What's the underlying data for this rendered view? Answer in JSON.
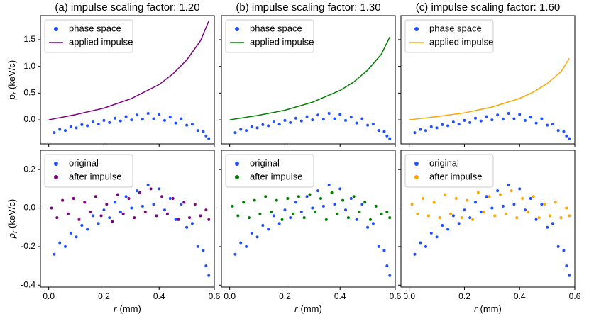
{
  "chart_data": [
    {
      "type": "scatter",
      "title": "(a) impulse scaling factor: 1.20",
      "ylabel": {
        "symbol": "p",
        "subscript": "r",
        "unit": "(keV/c)"
      },
      "xlim": [
        -0.03,
        0.6
      ],
      "ylim": [
        -0.45,
        1.95
      ],
      "xticks": [
        {
          "value": 0,
          "label": "0.0"
        },
        0.2,
        0.4,
        0.6
      ],
      "yticks": [
        {
          "value": 0,
          "label": "0.0"
        },
        0.5,
        {
          "value": 1,
          "label": "1.0"
        },
        1.5
      ],
      "legend": "upper left",
      "series": [
        {
          "name": "phase space",
          "color": "#1f4fff",
          "x": [
            0.02,
            0.04,
            0.06,
            0.08,
            0.1,
            0.12,
            0.14,
            0.16,
            0.18,
            0.2,
            0.22,
            0.24,
            0.26,
            0.28,
            0.3,
            0.32,
            0.34,
            0.36,
            0.38,
            0.4,
            0.42,
            0.44,
            0.46,
            0.48,
            0.5,
            0.52,
            0.54,
            0.56,
            0.57,
            0.58
          ],
          "values": [
            -0.24,
            -0.18,
            -0.2,
            -0.13,
            -0.15,
            -0.09,
            -0.11,
            -0.04,
            -0.08,
            -0.01,
            -0.05,
            0.03,
            -0.02,
            0.06,
            0.0,
            0.09,
            0.01,
            0.12,
            0.02,
            0.1,
            -0.01,
            0.05,
            -0.06,
            0.02,
            -0.1,
            -0.08,
            -0.2,
            -0.22,
            -0.3,
            -0.35
          ]
        },
        {
          "name": "applied impulse",
          "type": "line",
          "color": "#800080",
          "x": [
            0.0,
            0.1,
            0.2,
            0.3,
            0.4,
            0.45,
            0.5,
            0.55,
            0.58
          ],
          "values": [
            0.0,
            0.1,
            0.22,
            0.4,
            0.66,
            0.86,
            1.12,
            1.48,
            1.85
          ]
        }
      ]
    },
    {
      "type": "scatter",
      "title": "(b) impulse scaling factor: 1.30",
      "xlim": [
        -0.03,
        0.6
      ],
      "ylim": [
        -0.45,
        1.95
      ],
      "xticks": [
        {
          "value": 0,
          "label": "0.0"
        },
        0.2,
        0.4,
        0.6
      ],
      "yticks": [
        {
          "value": 0,
          "label": "0.0"
        },
        0.5,
        {
          "value": 1,
          "label": "1.0"
        },
        1.5
      ],
      "legend": "upper left",
      "series": [
        {
          "name": "phase space",
          "color": "#1f4fff",
          "x": [
            0.02,
            0.04,
            0.06,
            0.08,
            0.1,
            0.12,
            0.14,
            0.16,
            0.18,
            0.2,
            0.22,
            0.24,
            0.26,
            0.28,
            0.3,
            0.32,
            0.34,
            0.36,
            0.38,
            0.4,
            0.42,
            0.44,
            0.46,
            0.48,
            0.5,
            0.52,
            0.54,
            0.56,
            0.57,
            0.58
          ],
          "values": [
            -0.24,
            -0.18,
            -0.2,
            -0.13,
            -0.15,
            -0.09,
            -0.11,
            -0.04,
            -0.08,
            -0.01,
            -0.05,
            0.03,
            -0.02,
            0.06,
            0.0,
            0.09,
            0.01,
            0.12,
            0.02,
            0.1,
            -0.01,
            0.05,
            -0.06,
            0.02,
            -0.1,
            -0.08,
            -0.2,
            -0.22,
            -0.3,
            -0.35
          ]
        },
        {
          "name": "applied impulse",
          "type": "line",
          "color": "#008000",
          "x": [
            0.0,
            0.1,
            0.2,
            0.3,
            0.4,
            0.45,
            0.5,
            0.55,
            0.58
          ],
          "values": [
            0.0,
            0.08,
            0.18,
            0.33,
            0.55,
            0.71,
            0.93,
            1.23,
            1.55
          ]
        }
      ]
    },
    {
      "type": "scatter",
      "title": "(c) impulse scaling factor: 1.60",
      "xlim": [
        -0.03,
        0.6
      ],
      "ylim": [
        -0.45,
        1.95
      ],
      "xticks": [
        {
          "value": 0,
          "label": "0.0"
        },
        0.2,
        0.4,
        0.6
      ],
      "yticks": [
        {
          "value": 0,
          "label": "0.0"
        },
        0.5,
        {
          "value": 1,
          "label": "1.0"
        },
        1.5
      ],
      "legend": "upper left",
      "series": [
        {
          "name": "phase space",
          "color": "#1f4fff",
          "x": [
            0.02,
            0.04,
            0.06,
            0.08,
            0.1,
            0.12,
            0.14,
            0.16,
            0.18,
            0.2,
            0.22,
            0.24,
            0.26,
            0.28,
            0.3,
            0.32,
            0.34,
            0.36,
            0.38,
            0.4,
            0.42,
            0.44,
            0.46,
            0.48,
            0.5,
            0.52,
            0.54,
            0.56,
            0.57,
            0.58
          ],
          "values": [
            -0.24,
            -0.18,
            -0.2,
            -0.13,
            -0.15,
            -0.09,
            -0.11,
            -0.04,
            -0.08,
            -0.01,
            -0.05,
            0.03,
            -0.02,
            0.06,
            0.0,
            0.09,
            0.01,
            0.12,
            0.02,
            0.1,
            -0.01,
            0.05,
            -0.06,
            0.02,
            -0.1,
            -0.08,
            -0.2,
            -0.22,
            -0.3,
            -0.35
          ]
        },
        {
          "name": "applied impulse",
          "type": "line",
          "color": "#ffa500",
          "x": [
            0.0,
            0.1,
            0.2,
            0.3,
            0.4,
            0.45,
            0.5,
            0.55,
            0.58
          ],
          "values": [
            0.0,
            0.06,
            0.13,
            0.24,
            0.4,
            0.52,
            0.68,
            0.9,
            1.15
          ]
        }
      ]
    },
    {
      "type": "scatter",
      "xlabel": {
        "symbol": "r",
        "unit": "(mm)"
      },
      "ylabel": {
        "symbol": "p",
        "subscript": "r",
        "unit": "(keV/c)"
      },
      "xlim": [
        -0.03,
        0.6
      ],
      "ylim": [
        -0.41,
        0.3
      ],
      "xticks": [
        {
          "value": 0,
          "label": "0.0"
        },
        0.2,
        0.4,
        0.6
      ],
      "yticks": [
        -0.4,
        -0.2,
        {
          "value": 0,
          "label": "0.0"
        },
        0.2
      ],
      "legend": "upper left",
      "series": [
        {
          "name": "original",
          "color": "#1f4fff",
          "x": [
            0.02,
            0.04,
            0.06,
            0.08,
            0.1,
            0.12,
            0.14,
            0.16,
            0.18,
            0.2,
            0.22,
            0.24,
            0.26,
            0.28,
            0.3,
            0.32,
            0.34,
            0.36,
            0.38,
            0.4,
            0.42,
            0.44,
            0.46,
            0.48,
            0.5,
            0.52,
            0.54,
            0.56,
            0.57,
            0.58
          ],
          "values": [
            -0.24,
            -0.18,
            -0.2,
            -0.13,
            -0.15,
            -0.09,
            -0.11,
            -0.04,
            -0.08,
            -0.01,
            -0.05,
            0.03,
            -0.02,
            0.06,
            0.0,
            0.09,
            0.01,
            0.12,
            0.02,
            0.1,
            -0.01,
            0.05,
            -0.06,
            0.02,
            -0.1,
            -0.08,
            -0.2,
            -0.22,
            -0.3,
            -0.35
          ]
        },
        {
          "name": "after impulse",
          "color": "#800080",
          "x": [
            0.01,
            0.03,
            0.05,
            0.07,
            0.09,
            0.11,
            0.13,
            0.15,
            0.17,
            0.19,
            0.21,
            0.23,
            0.25,
            0.27,
            0.29,
            0.31,
            0.33,
            0.35,
            0.37,
            0.39,
            0.41,
            0.43,
            0.45,
            0.47,
            0.49,
            0.51,
            0.53,
            0.55,
            0.57,
            0.58
          ],
          "values": [
            0.0,
            -0.05,
            0.04,
            -0.03,
            0.05,
            -0.06,
            0.03,
            -0.02,
            0.06,
            -0.04,
            0.02,
            -0.07,
            0.07,
            -0.03,
            0.05,
            -0.05,
            0.08,
            -0.02,
            0.1,
            -0.04,
            0.06,
            -0.03,
            0.05,
            -0.06,
            0.03,
            -0.05,
            0.02,
            -0.04,
            -0.01,
            -0.06
          ]
        }
      ]
    },
    {
      "type": "scatter",
      "xlabel": {
        "symbol": "r",
        "unit": "(mm)"
      },
      "xlim": [
        -0.03,
        0.6
      ],
      "ylim": [
        -0.41,
        0.3
      ],
      "xticks": [
        {
          "value": 0,
          "label": "0.0"
        },
        0.2,
        0.4,
        0.6
      ],
      "yticks": [
        -0.4,
        -0.2,
        {
          "value": 0,
          "label": "0.0"
        },
        0.2
      ],
      "legend": "upper left",
      "series": [
        {
          "name": "original",
          "color": "#1f4fff",
          "x": [
            0.02,
            0.04,
            0.06,
            0.08,
            0.1,
            0.12,
            0.14,
            0.16,
            0.18,
            0.2,
            0.22,
            0.24,
            0.26,
            0.28,
            0.3,
            0.32,
            0.34,
            0.36,
            0.38,
            0.4,
            0.42,
            0.44,
            0.46,
            0.48,
            0.5,
            0.52,
            0.54,
            0.56,
            0.57,
            0.58
          ],
          "values": [
            -0.24,
            -0.18,
            -0.2,
            -0.13,
            -0.15,
            -0.09,
            -0.11,
            -0.04,
            -0.08,
            -0.01,
            -0.05,
            0.03,
            -0.02,
            0.06,
            0.0,
            0.09,
            0.01,
            0.12,
            0.02,
            0.1,
            -0.01,
            0.05,
            -0.06,
            0.02,
            -0.1,
            -0.08,
            -0.2,
            -0.22,
            -0.3,
            -0.35
          ]
        },
        {
          "name": "after impulse",
          "color": "#008000",
          "x": [
            0.01,
            0.03,
            0.05,
            0.07,
            0.09,
            0.11,
            0.13,
            0.15,
            0.17,
            0.19,
            0.21,
            0.23,
            0.25,
            0.27,
            0.29,
            0.31,
            0.33,
            0.35,
            0.37,
            0.39,
            0.41,
            0.43,
            0.45,
            0.47,
            0.49,
            0.51,
            0.53,
            0.55,
            0.57,
            0.58
          ],
          "values": [
            0.01,
            -0.04,
            0.03,
            -0.05,
            0.04,
            -0.03,
            0.06,
            -0.02,
            0.04,
            -0.06,
            0.05,
            -0.03,
            0.06,
            -0.05,
            0.07,
            -0.02,
            0.05,
            -0.06,
            0.08,
            -0.03,
            0.04,
            -0.05,
            0.06,
            -0.02,
            0.03,
            -0.06,
            0.01,
            -0.03,
            -0.02,
            -0.05
          ]
        }
      ]
    },
    {
      "type": "scatter",
      "xlabel": {
        "symbol": "r",
        "unit": "(mm)"
      },
      "xlim": [
        -0.03,
        0.6
      ],
      "ylim": [
        -0.41,
        0.3
      ],
      "xticks": [
        {
          "value": 0,
          "label": "0.0"
        },
        0.2,
        0.4,
        0.6
      ],
      "yticks": [
        -0.4,
        -0.2,
        {
          "value": 0,
          "label": "0.0"
        },
        0.2
      ],
      "legend": "upper left",
      "series": [
        {
          "name": "original",
          "color": "#1f4fff",
          "x": [
            0.02,
            0.04,
            0.06,
            0.08,
            0.1,
            0.12,
            0.14,
            0.16,
            0.18,
            0.2,
            0.22,
            0.24,
            0.26,
            0.28,
            0.3,
            0.32,
            0.34,
            0.36,
            0.38,
            0.4,
            0.42,
            0.44,
            0.46,
            0.48,
            0.5,
            0.52,
            0.54,
            0.56,
            0.57,
            0.58
          ],
          "values": [
            -0.24,
            -0.18,
            -0.2,
            -0.13,
            -0.15,
            -0.09,
            -0.11,
            -0.04,
            -0.08,
            -0.01,
            -0.05,
            0.03,
            -0.02,
            0.06,
            0.0,
            0.09,
            0.01,
            0.12,
            0.02,
            0.1,
            -0.01,
            0.05,
            -0.06,
            0.02,
            -0.1,
            -0.08,
            -0.2,
            -0.22,
            -0.3,
            -0.35
          ]
        },
        {
          "name": "after impulse",
          "color": "#ffa500",
          "x": [
            0.01,
            0.03,
            0.05,
            0.07,
            0.09,
            0.11,
            0.13,
            0.15,
            0.17,
            0.19,
            0.21,
            0.23,
            0.25,
            0.27,
            0.29,
            0.31,
            0.33,
            0.35,
            0.37,
            0.39,
            0.41,
            0.43,
            0.45,
            0.47,
            0.49,
            0.51,
            0.53,
            0.55,
            0.57,
            0.58
          ],
          "values": [
            0.02,
            -0.03,
            0.05,
            -0.04,
            0.03,
            -0.05,
            0.07,
            -0.03,
            0.05,
            -0.05,
            0.04,
            -0.06,
            0.08,
            -0.02,
            0.06,
            -0.04,
            0.07,
            -0.03,
            0.09,
            -0.05,
            0.05,
            -0.02,
            0.06,
            -0.05,
            0.02,
            -0.04,
            0.03,
            -0.05,
            0.0,
            -0.04
          ]
        }
      ]
    }
  ]
}
